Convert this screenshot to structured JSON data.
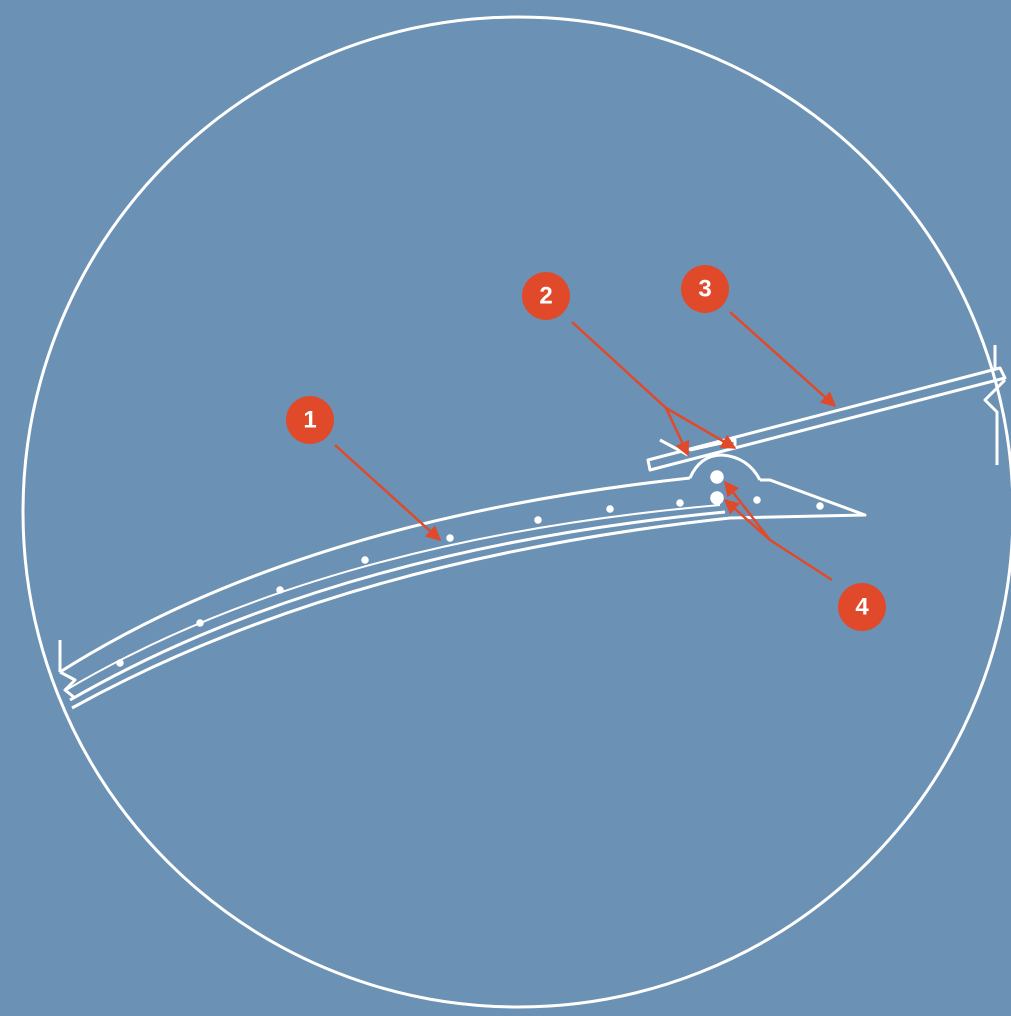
{
  "callouts": [
    {
      "label": "1"
    },
    {
      "label": "2"
    },
    {
      "label": "3"
    },
    {
      "label": "4"
    }
  ]
}
